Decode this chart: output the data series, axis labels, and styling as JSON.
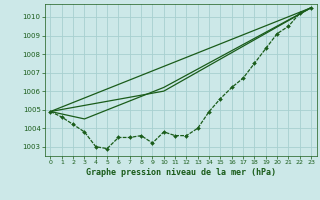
{
  "xlabel": "Graphe pression niveau de la mer (hPa)",
  "xlim": [
    -0.5,
    23.5
  ],
  "ylim": [
    1002.5,
    1010.7
  ],
  "yticks": [
    1003,
    1004,
    1005,
    1006,
    1007,
    1008,
    1009,
    1010
  ],
  "xticks": [
    0,
    1,
    2,
    3,
    4,
    5,
    6,
    7,
    8,
    9,
    10,
    11,
    12,
    13,
    14,
    15,
    16,
    17,
    18,
    19,
    20,
    21,
    22,
    23
  ],
  "background_color": "#cce8e8",
  "grid_color": "#a8d0d0",
  "line_color": "#1a5c1a",
  "line1_x": [
    0,
    1,
    2,
    3,
    4,
    5,
    6,
    7,
    8,
    9,
    10,
    11,
    12,
    13,
    14,
    15,
    16,
    17,
    18,
    19,
    20,
    21,
    22,
    23
  ],
  "line1_y": [
    1004.9,
    1004.6,
    1004.2,
    1003.8,
    1003.0,
    1002.9,
    1003.5,
    1003.5,
    1003.6,
    1003.2,
    1003.8,
    1003.6,
    1003.6,
    1004.0,
    1004.9,
    1005.6,
    1006.2,
    1006.7,
    1007.5,
    1008.3,
    1009.1,
    1009.5,
    1010.2,
    1010.5
  ],
  "line2_x": [
    0,
    23
  ],
  "line2_y": [
    1004.9,
    1010.5
  ],
  "line3_x": [
    0,
    3,
    10,
    23
  ],
  "line3_y": [
    1004.9,
    1004.5,
    1006.2,
    1010.5
  ],
  "line4_x": [
    0,
    10,
    23
  ],
  "line4_y": [
    1004.9,
    1006.0,
    1010.5
  ]
}
